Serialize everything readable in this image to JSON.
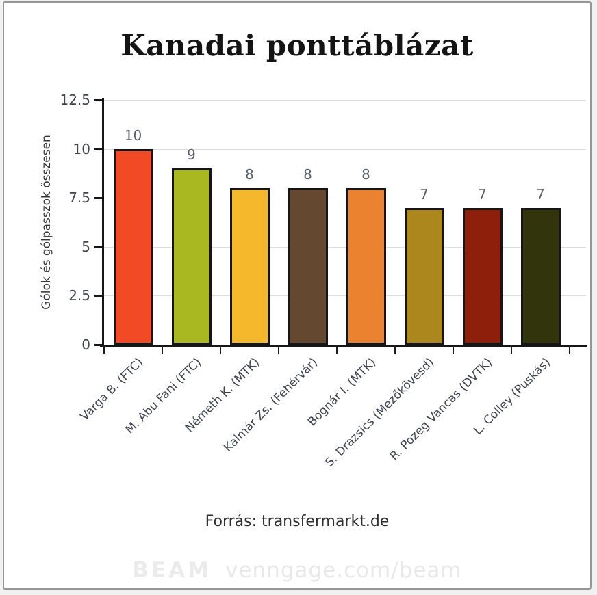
{
  "page": {
    "source": "Forrás: transfermarkt.de",
    "watermark_brand": "BEAM",
    "watermark_url": "venngage.com/beam"
  },
  "chart_data": {
    "type": "bar",
    "title": "Kanadai ponttáblázat",
    "ylabel": "Gólok és gólpasszok összesen",
    "xlabel": "",
    "categories": [
      "Varga B. (FTC)",
      "M. Abu Fani (FTC)",
      "Németh K. (MTK)",
      "Kalmár Zs. (Fehérvár)",
      "Bognár I. (MTK)",
      "S. Drazsics (Mezőkövesd)",
      "R. Pozeg Vancas (DVTK)",
      "L. Colley (Puskás)"
    ],
    "values": [
      10,
      9,
      8,
      8,
      8,
      7,
      7,
      7
    ],
    "bar_colors": [
      "#f24a24",
      "#a9b821",
      "#f5b72b",
      "#654830",
      "#eb8230",
      "#ac871e",
      "#8e1f0a",
      "#32350c"
    ],
    "bar_border_color": "#161616",
    "ylim": [
      0,
      12.5
    ],
    "yticks": [
      0,
      2.5,
      5,
      7.5,
      10,
      12.5
    ],
    "grid": true,
    "legend": false,
    "value_labels": true
  }
}
